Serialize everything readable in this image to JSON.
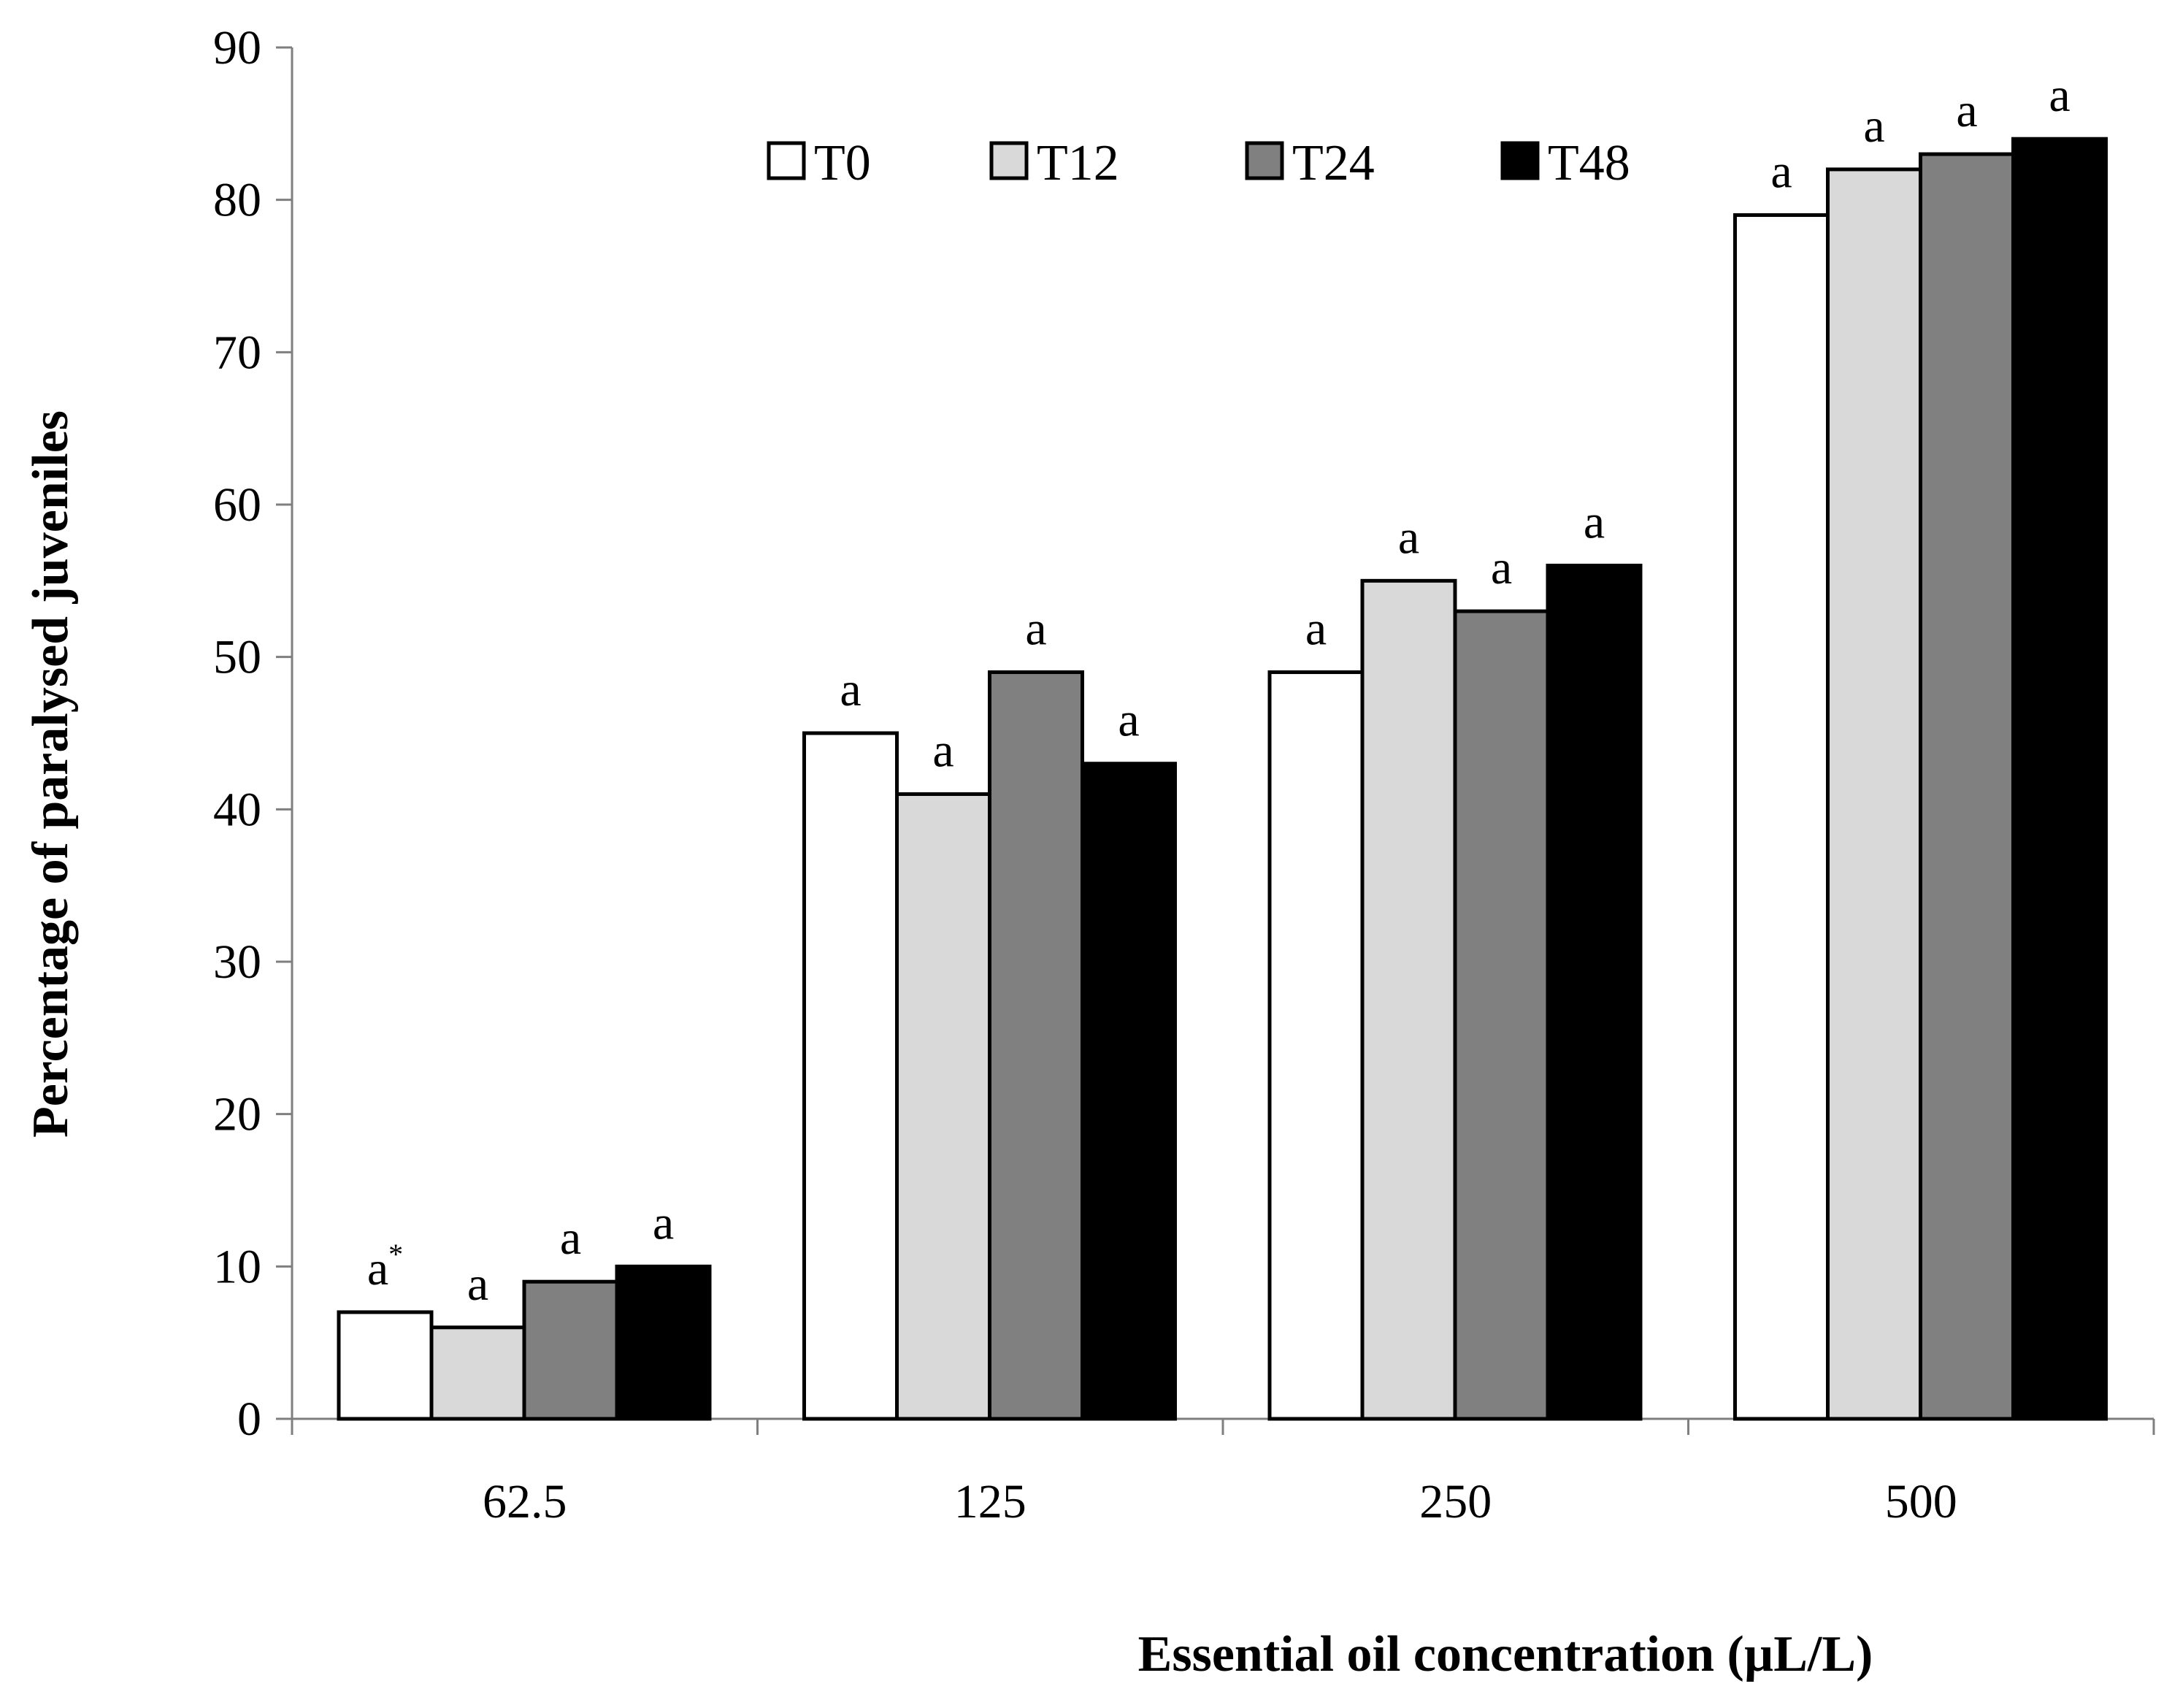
{
  "chart_data": {
    "type": "bar",
    "title": "",
    "xlabel": "Essential oil concentration (µL/L)",
    "ylabel": "Percentage of paralysed juveniles",
    "categories": [
      "62.5",
      "125",
      "250",
      "500"
    ],
    "ylim": [
      0,
      90
    ],
    "yticks": [
      0,
      10,
      20,
      30,
      40,
      50,
      60,
      70,
      80,
      90
    ],
    "grid": false,
    "legend_position": "top",
    "series": [
      {
        "name": "T0",
        "color": "#ffffff",
        "values": [
          7,
          45,
          49,
          79
        ],
        "labels": [
          "a",
          "a",
          "a",
          "a"
        ]
      },
      {
        "name": "T12",
        "color": "#d9d9d9",
        "values": [
          6,
          41,
          55,
          82
        ],
        "labels": [
          "a",
          "a",
          "a",
          "a"
        ]
      },
      {
        "name": "T24",
        "color": "#808080",
        "values": [
          9,
          49,
          53,
          83
        ],
        "labels": [
          "a",
          "a",
          "a",
          "a"
        ]
      },
      {
        "name": "T48",
        "color": "#000000",
        "values": [
          10,
          43,
          56,
          84
        ],
        "labels": [
          "a",
          "a",
          "a",
          "a"
        ]
      }
    ],
    "annotations": [
      {
        "category": "62.5",
        "series": "T0",
        "text": "*"
      }
    ]
  }
}
